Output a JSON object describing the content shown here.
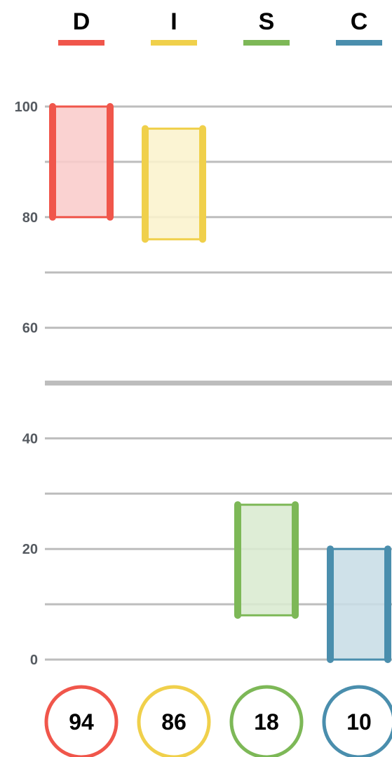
{
  "chart_data": {
    "type": "bar",
    "title": "",
    "xlabel": "",
    "ylabel": "",
    "ylim": [
      0,
      100
    ],
    "yticks": [
      0,
      20,
      40,
      60,
      80,
      100
    ],
    "gridlines": [
      0,
      10,
      20,
      30,
      40,
      50,
      60,
      70,
      80,
      90,
      100
    ],
    "midline": 50,
    "grid": true,
    "bars": [
      {
        "category": "D",
        "low": 80,
        "high": 100,
        "score": "94",
        "color": "#f0564b",
        "fill": "#f9cccb"
      },
      {
        "category": "I",
        "low": 76,
        "high": 96,
        "score": "86",
        "color": "#f0d04b",
        "fill": "#fbf2cd"
      },
      {
        "category": "S",
        "low": 8,
        "high": 28,
        "score": "18",
        "color": "#7db857",
        "fill": "#d9ead0"
      },
      {
        "category": "C",
        "low": 0,
        "high": 20,
        "score": "10",
        "color": "#4a8ead",
        "fill": "#c8dde6"
      }
    ]
  }
}
